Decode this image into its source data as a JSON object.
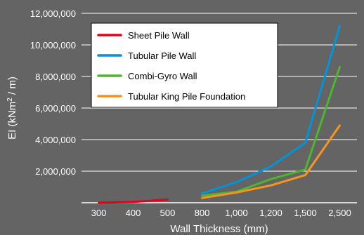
{
  "chart_data": {
    "type": "line",
    "title": "",
    "xlabel": "Wall Thickness (mm)",
    "ylabel_main": "EI (kNm",
    "ylabel_sup": "2",
    "ylabel_tail": " / m)",
    "categories": [
      "300",
      "400",
      "500",
      "800",
      "1,000",
      "1,200",
      "1,500",
      "2,500"
    ],
    "y_ticks": [
      2000000,
      4000000,
      6000000,
      8000000,
      10000000,
      12000000
    ],
    "y_tick_labels": [
      "2,000,000",
      "4,000,000",
      "6,000,000",
      "8,000,000",
      "10,000,000",
      "12,000,000"
    ],
    "ylim": [
      0,
      12000000
    ],
    "grid": true,
    "legend_position": "top-left",
    "series": [
      {
        "name": "Sheet Pile Wall",
        "color": "#e3001b",
        "points": [
          [
            "300",
            0
          ],
          [
            "400",
            50000
          ],
          [
            "500",
            200000
          ]
        ]
      },
      {
        "name": "Tubular Pile Wall",
        "color": "#0094d9",
        "points": [
          [
            "800",
            600000
          ],
          [
            "1,000",
            1300000
          ],
          [
            "1,200",
            2300000
          ],
          [
            "1,500",
            3800000
          ],
          [
            "2,500",
            11200000
          ]
        ]
      },
      {
        "name": "Combi-Gyro Wall",
        "color": "#4db52e",
        "points": [
          [
            "800",
            450000
          ],
          [
            "1,000",
            700000
          ],
          [
            "1,200",
            1500000
          ],
          [
            "1,500",
            2100000
          ],
          [
            "2,500",
            8600000
          ]
        ]
      },
      {
        "name": "Tubular King Pile Foundation",
        "color": "#f7941d",
        "points": [
          [
            "800",
            300000
          ],
          [
            "1,000",
            650000
          ],
          [
            "1,200",
            1100000
          ],
          [
            "1,500",
            1750000
          ],
          [
            "2,500",
            4900000
          ]
        ]
      }
    ]
  }
}
